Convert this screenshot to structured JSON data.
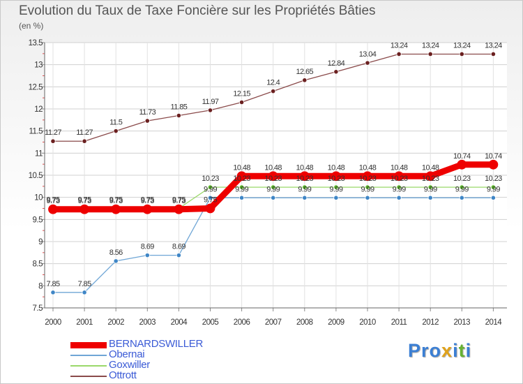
{
  "title": "Evolution du Taux de Taxe Foncière sur les Propriétés Bâties",
  "unit_label": "(en %)",
  "logo": {
    "text": "Proxiti",
    "colors": [
      "#3b7fd4",
      "#e0a21b",
      "#66b233"
    ]
  },
  "chart_data": {
    "type": "line",
    "title": "Evolution du Taux de Taxe Foncière sur les Propriétés Bâties",
    "xlabel": "",
    "ylabel": "(en %)",
    "ylim": [
      7.5,
      13.5
    ],
    "y_ticks": [
      7.5,
      8,
      8.5,
      9,
      9.5,
      10,
      10.5,
      11,
      11.5,
      12,
      12.5,
      13,
      13.5
    ],
    "y_tick_labels": [
      "7.5",
      "8",
      "8.5",
      "9",
      "9.5",
      "10",
      "10.5",
      "11",
      "11.5",
      "12",
      "12.5",
      "13",
      "13.5"
    ],
    "grid": true,
    "x": [
      "2000",
      "2001",
      "2002",
      "2003",
      "2004",
      "2005",
      "2006",
      "2007",
      "2008",
      "2009",
      "2010",
      "2011",
      "2012",
      "2013",
      "2014"
    ],
    "series": [
      {
        "name": "Ottrott",
        "color": "#8a4a4a",
        "dot_color": "#6b2020",
        "values": [
          11.27,
          11.27,
          11.5,
          11.73,
          11.85,
          11.97,
          12.15,
          12.4,
          12.65,
          12.84,
          13.04,
          13.24,
          13.24,
          13.24,
          13.24
        ],
        "labels": [
          "11.27",
          "11.27",
          "11.5",
          "11.73",
          "11.85",
          "11.97",
          "12.15",
          "12.4",
          "12.65",
          "12.84",
          "13.04",
          "13.24",
          "13.24",
          "13.24",
          "13.24"
        ]
      },
      {
        "name": "Obernai",
        "color": "#6fa6d6",
        "dot_color": "#3f86c6",
        "values": [
          7.85,
          7.85,
          8.56,
          8.69,
          8.69,
          9.99,
          9.99,
          9.99,
          9.99,
          9.99,
          9.99,
          9.99,
          9.99,
          9.99,
          9.99
        ],
        "labels": [
          "7.85",
          "7.85",
          "8.56",
          "8.69",
          "8.69",
          "9.99",
          "9.99",
          "9.99",
          "9.99",
          "9.99",
          "9.99",
          "9.99",
          "9.99",
          "9.99",
          "9.99"
        ]
      },
      {
        "name": "Goxwiller",
        "color": "#9ad86a",
        "dot_color": "#5cb82a",
        "values": [
          9.75,
          9.75,
          9.75,
          9.75,
          9.75,
          10.23,
          10.23,
          10.23,
          10.23,
          10.23,
          10.23,
          10.23,
          10.23,
          10.23,
          10.23
        ],
        "labels": [
          "9.75",
          "9.75",
          "9.75",
          "9.75",
          "9.75",
          "10.23",
          "10.23",
          "10.23",
          "10.23",
          "10.23",
          "10.23",
          "10.23",
          "10.23",
          "10.23",
          "10.23"
        ]
      },
      {
        "name": "BERNARDSWILLER",
        "color": "#ee0000",
        "dot_color": "#ee0000",
        "values": [
          9.73,
          9.73,
          9.73,
          9.73,
          9.73,
          9.75,
          10.48,
          10.48,
          10.48,
          10.48,
          10.48,
          10.48,
          10.48,
          10.74,
          10.74
        ],
        "labels": [
          "9.73",
          "9.73",
          "9.73",
          "9.73",
          "9.73",
          "9.75",
          "10.48",
          "10.48",
          "10.48",
          "10.48",
          "10.48",
          "10.48",
          "10.48",
          "10.74",
          "10.74"
        ]
      }
    ],
    "legend_order": [
      "BERNARDSWILLER",
      "Obernai",
      "Goxwiller",
      "Ottrott"
    ]
  }
}
